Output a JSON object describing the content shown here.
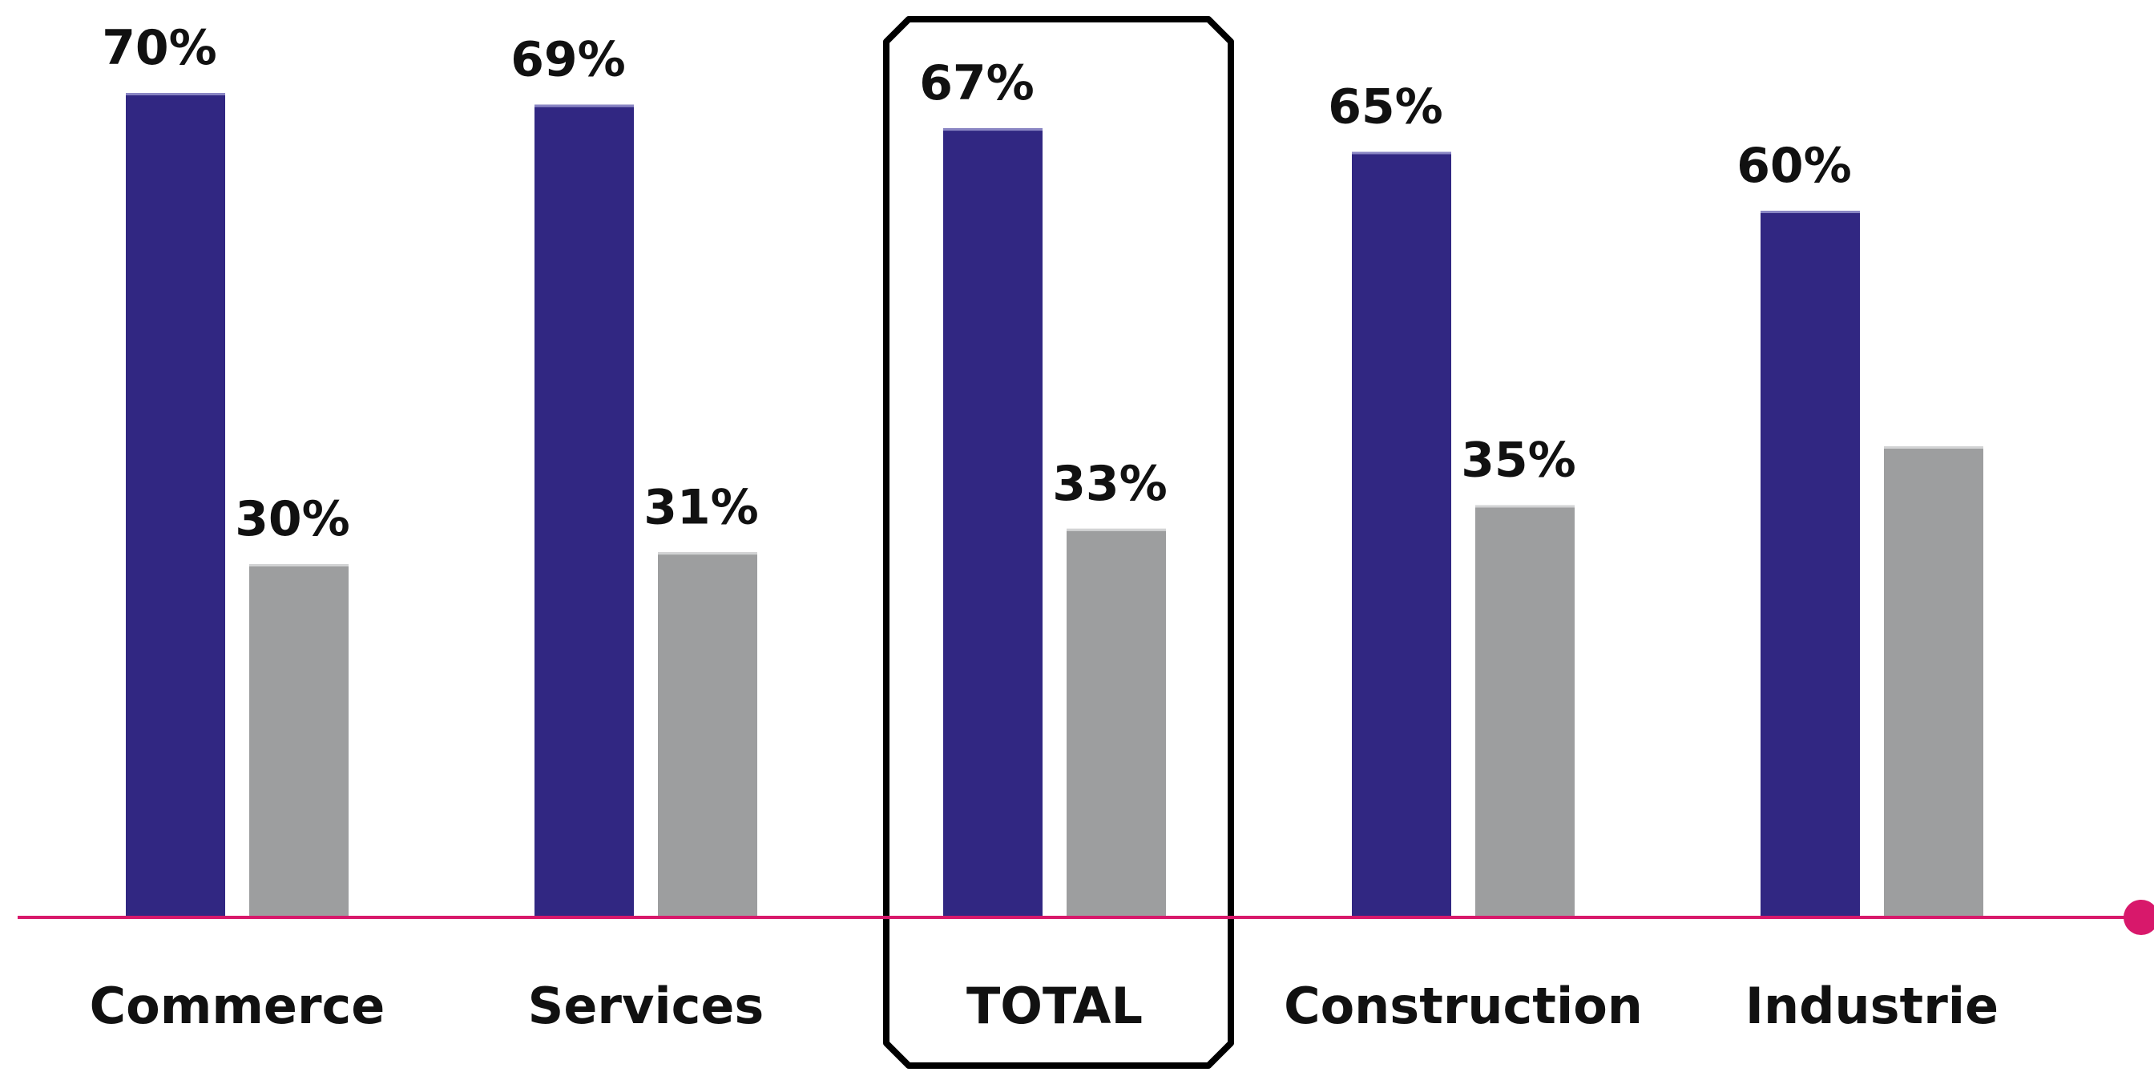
{
  "chart_data": {
    "type": "bar",
    "title": "",
    "xlabel": "",
    "ylabel": "",
    "ylim": [
      0,
      70
    ],
    "categories": [
      "Commerce",
      "Services",
      "TOTAL",
      "Construction",
      "Industrie"
    ],
    "highlighted_category": "TOTAL",
    "series": [
      {
        "values": [
          70,
          69,
          67,
          65,
          60
        ],
        "labels": [
          "70%",
          "69%",
          "67%",
          "65%",
          "60%"
        ],
        "color": "#312782"
      },
      {
        "values": [
          30,
          31,
          33,
          35,
          40
        ],
        "labels": [
          "30%",
          "31%",
          "33%",
          "35%",
          ""
        ],
        "color": "#9d9e9f"
      }
    ],
    "grid": false,
    "legend": "none",
    "axis_color": "#d8186b"
  }
}
